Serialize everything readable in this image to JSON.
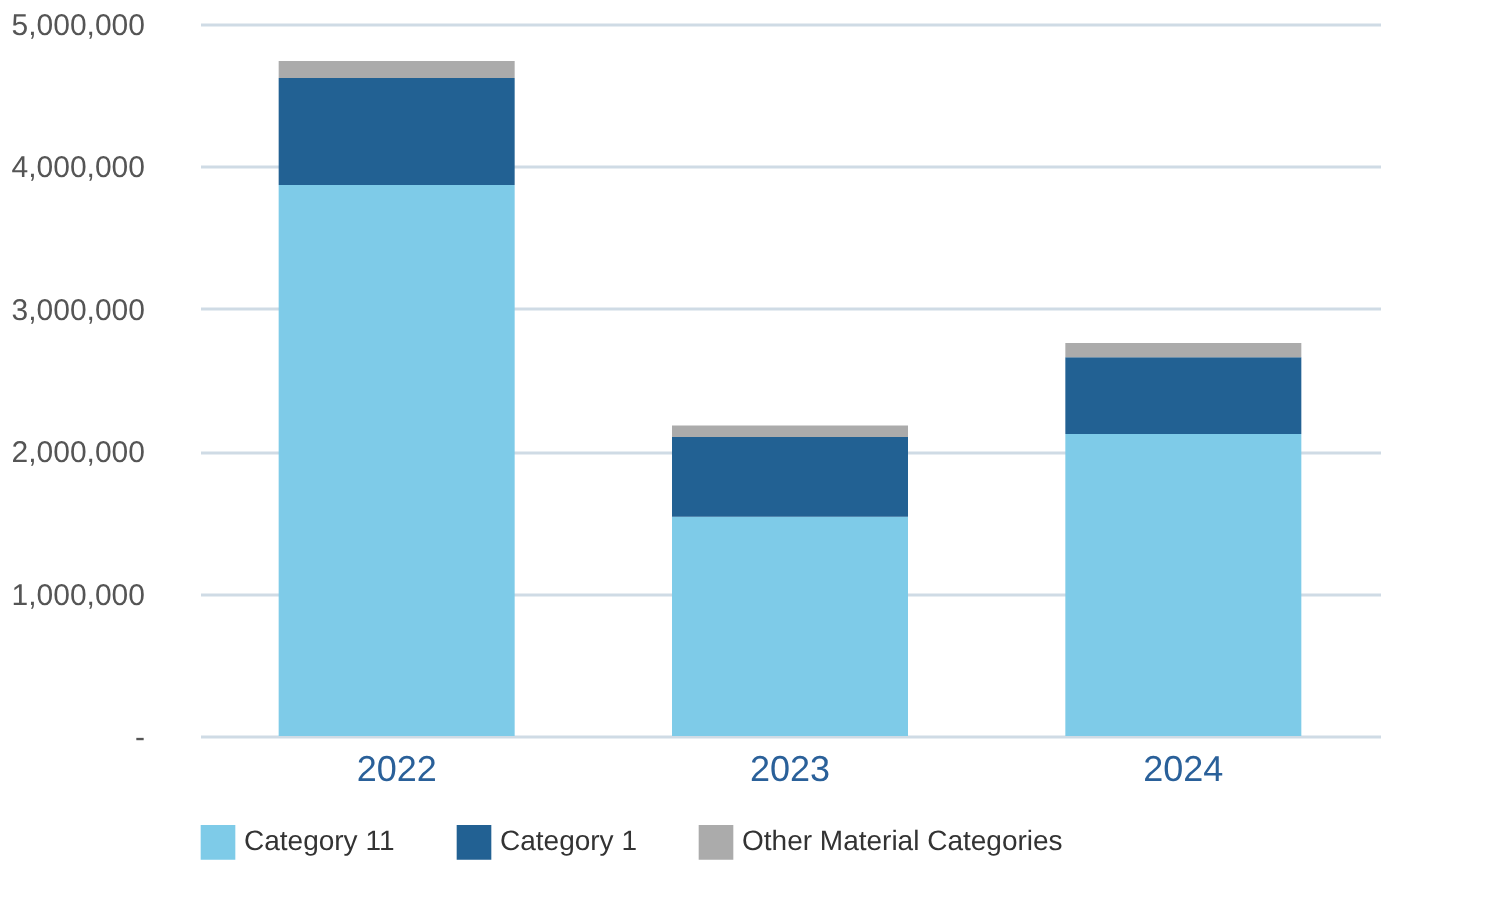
{
  "chart_data": {
    "type": "bar",
    "stacked": true,
    "categories": [
      "2022",
      "2023",
      "2024"
    ],
    "series": [
      {
        "name": "Category 11",
        "color": "#7ecbe8",
        "values": [
          3870000,
          1540000,
          2120000
        ]
      },
      {
        "name": "Category 1",
        "color": "#226193",
        "values": [
          750000,
          560000,
          540000
        ]
      },
      {
        "name": "Other Material Categories",
        "color": "#ababab",
        "values": [
          120000,
          80000,
          100000
        ]
      }
    ],
    "ylim": [
      0,
      5000000
    ],
    "yticks": [
      {
        "value": 0,
        "label": "-"
      },
      {
        "value": 1000000,
        "label": "1,000,000"
      },
      {
        "value": 2000000,
        "label": "2,000,000"
      },
      {
        "value": 3000000,
        "label": "3,000,000"
      },
      {
        "value": 4000000,
        "label": "4,000,000"
      },
      {
        "value": 5000000,
        "label": "5,000,000"
      }
    ],
    "grid": "y",
    "legend": "bottom"
  }
}
